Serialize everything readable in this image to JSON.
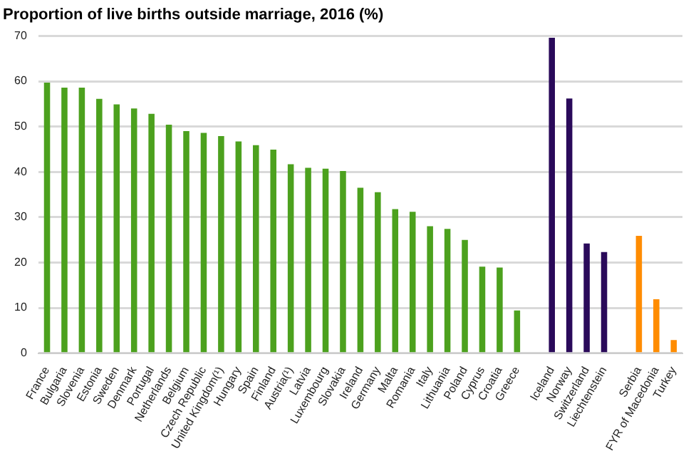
{
  "chart_data": {
    "type": "bar",
    "title": "Proportion of live births outside marriage, 2016 (%)",
    "categories": [
      "France",
      "Bulgaria",
      "Slovenia",
      "Estonia",
      "Sweden",
      "Denmark",
      "Portugal",
      "Netherlands",
      "Belgium",
      "Czech Republic",
      "United Kingdom(¹)",
      "Hungary",
      "Spain",
      "Finland",
      "Austria(¹)",
      "Latvia",
      "Luxembourg",
      "Slovakia",
      "Ireland",
      "Germany",
      "Malta",
      "Romania",
      "Italy",
      "Lithuania",
      "Poland",
      "Cyprus",
      "Croatia",
      "Greece",
      null,
      "Iceland",
      "Norway",
      "Switzerland",
      "Liechtenstein",
      null,
      "Serbia",
      "FYR of Macedonia",
      "Turkey"
    ],
    "values": [
      59.7,
      58.6,
      58.6,
      56.1,
      54.9,
      54.0,
      52.8,
      50.4,
      49.0,
      48.6,
      47.9,
      46.7,
      45.9,
      44.9,
      41.7,
      40.9,
      40.7,
      40.2,
      36.5,
      35.5,
      31.8,
      31.2,
      28.0,
      27.4,
      25.0,
      19.1,
      18.9,
      9.4,
      null,
      69.6,
      56.2,
      24.2,
      22.3,
      null,
      25.9,
      11.9,
      2.9
    ],
    "colors": [
      "#4ca11e",
      "#4ca11e",
      "#4ca11e",
      "#4ca11e",
      "#4ca11e",
      "#4ca11e",
      "#4ca11e",
      "#4ca11e",
      "#4ca11e",
      "#4ca11e",
      "#4ca11e",
      "#4ca11e",
      "#4ca11e",
      "#4ca11e",
      "#4ca11e",
      "#4ca11e",
      "#4ca11e",
      "#4ca11e",
      "#4ca11e",
      "#4ca11e",
      "#4ca11e",
      "#4ca11e",
      "#4ca11e",
      "#4ca11e",
      "#4ca11e",
      "#4ca11e",
      "#4ca11e",
      "#4ca11e",
      "#4ca11e",
      "#2a0a5a",
      "#2a0a5a",
      "#2a0a5a",
      "#2a0a5a",
      "#2a0a5a",
      "#ff8c00",
      "#ff8c00",
      "#ff8c00"
    ],
    "ylim": [
      0,
      70
    ],
    "yticks": [
      0,
      10,
      20,
      30,
      40,
      50,
      60,
      70
    ],
    "grid": "y",
    "legend": false
  }
}
